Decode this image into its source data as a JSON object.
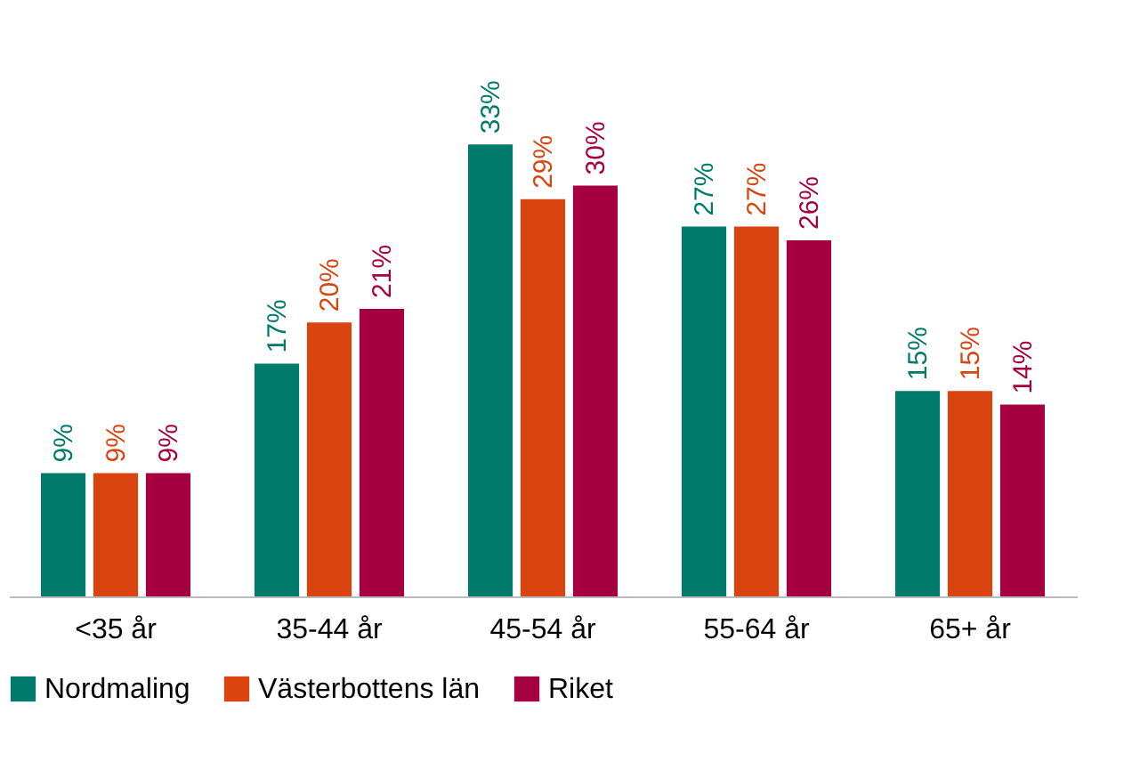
{
  "chart_data": {
    "type": "bar",
    "categories": [
      "<35 år",
      "35-44 år",
      "45-54 år",
      "55-64 år",
      "65+ år"
    ],
    "series": [
      {
        "name": "Nordmaling",
        "color": "#007b6b",
        "values": [
          9,
          17,
          33,
          27,
          15
        ],
        "value_labels": [
          "9%",
          "17%",
          "33%",
          "27%",
          "15%"
        ]
      },
      {
        "name": "Västerbottens län",
        "color": "#d9440f",
        "values": [
          9,
          20,
          29,
          27,
          15
        ],
        "value_labels": [
          "9%",
          "20%",
          "29%",
          "27%",
          "15%"
        ]
      },
      {
        "name": "Riket",
        "color": "#a5003f",
        "values": [
          9,
          21,
          30,
          26,
          14
        ],
        "value_labels": [
          "9%",
          "21%",
          "30%",
          "26%",
          "14%"
        ]
      }
    ],
    "legend": "bottom",
    "grid": false
  }
}
